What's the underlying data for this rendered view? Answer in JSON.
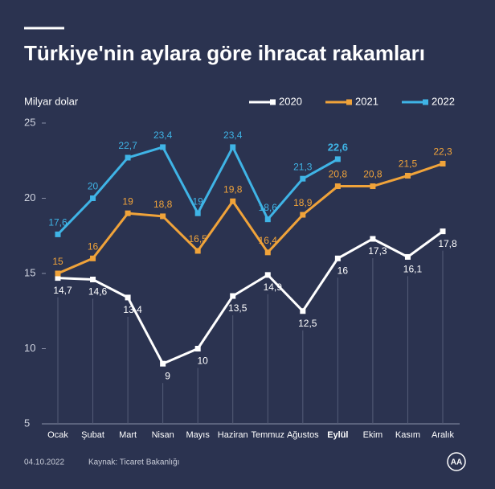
{
  "chart_data": {
    "type": "line",
    "title": "Türkiye'nin aylara göre ihracat rakamları",
    "y_label": "Milyar dolar",
    "date": "04.10.2022",
    "source": "Kaynak: Ticaret Bakanlığı",
    "logo": "AA",
    "categories": [
      "Ocak",
      "Şubat",
      "Mart",
      "Nisan",
      "Mayıs",
      "Haziran",
      "Temmuz",
      "Ağustos",
      "Eylül",
      "Ekim",
      "Kasım",
      "Aralık"
    ],
    "bold_category_index": 8,
    "series": [
      {
        "name": "2020",
        "color": "#ffffff",
        "values": [
          14.7,
          14.6,
          13.4,
          9,
          10,
          13.5,
          14.9,
          12.5,
          16,
          17.3,
          16.1,
          17.8
        ],
        "value_labels": [
          "14,7",
          "14,6",
          "13,4",
          "9",
          "10",
          "13,5",
          "14,9",
          "12,5",
          "16",
          "17,3",
          "16,1",
          "17,8"
        ]
      },
      {
        "name": "2021",
        "color": "#f0a33a",
        "values": [
          15,
          16,
          19,
          18.8,
          16.5,
          19.8,
          16.4,
          18.9,
          20.8,
          20.8,
          21.5,
          22.3
        ],
        "value_labels": [
          "15",
          "16",
          "19",
          "18,8",
          "16,5",
          "19,8",
          "16,4",
          "18,9",
          "20,8",
          "20,8",
          "21,5",
          "22,3"
        ]
      },
      {
        "name": "2022",
        "color": "#3fb4e6",
        "values": [
          17.6,
          20,
          22.7,
          23.4,
          19,
          23.4,
          18.6,
          21.3,
          22.6,
          null,
          null,
          null
        ],
        "value_labels": [
          "17,6",
          "20",
          "22,7",
          "23,4",
          "19",
          "23,4",
          "18,6",
          "21,3",
          "22,6",
          null,
          null,
          null
        ]
      }
    ],
    "ylim": [
      5,
      25
    ],
    "yticks": [
      5,
      10,
      15,
      20,
      25
    ]
  }
}
